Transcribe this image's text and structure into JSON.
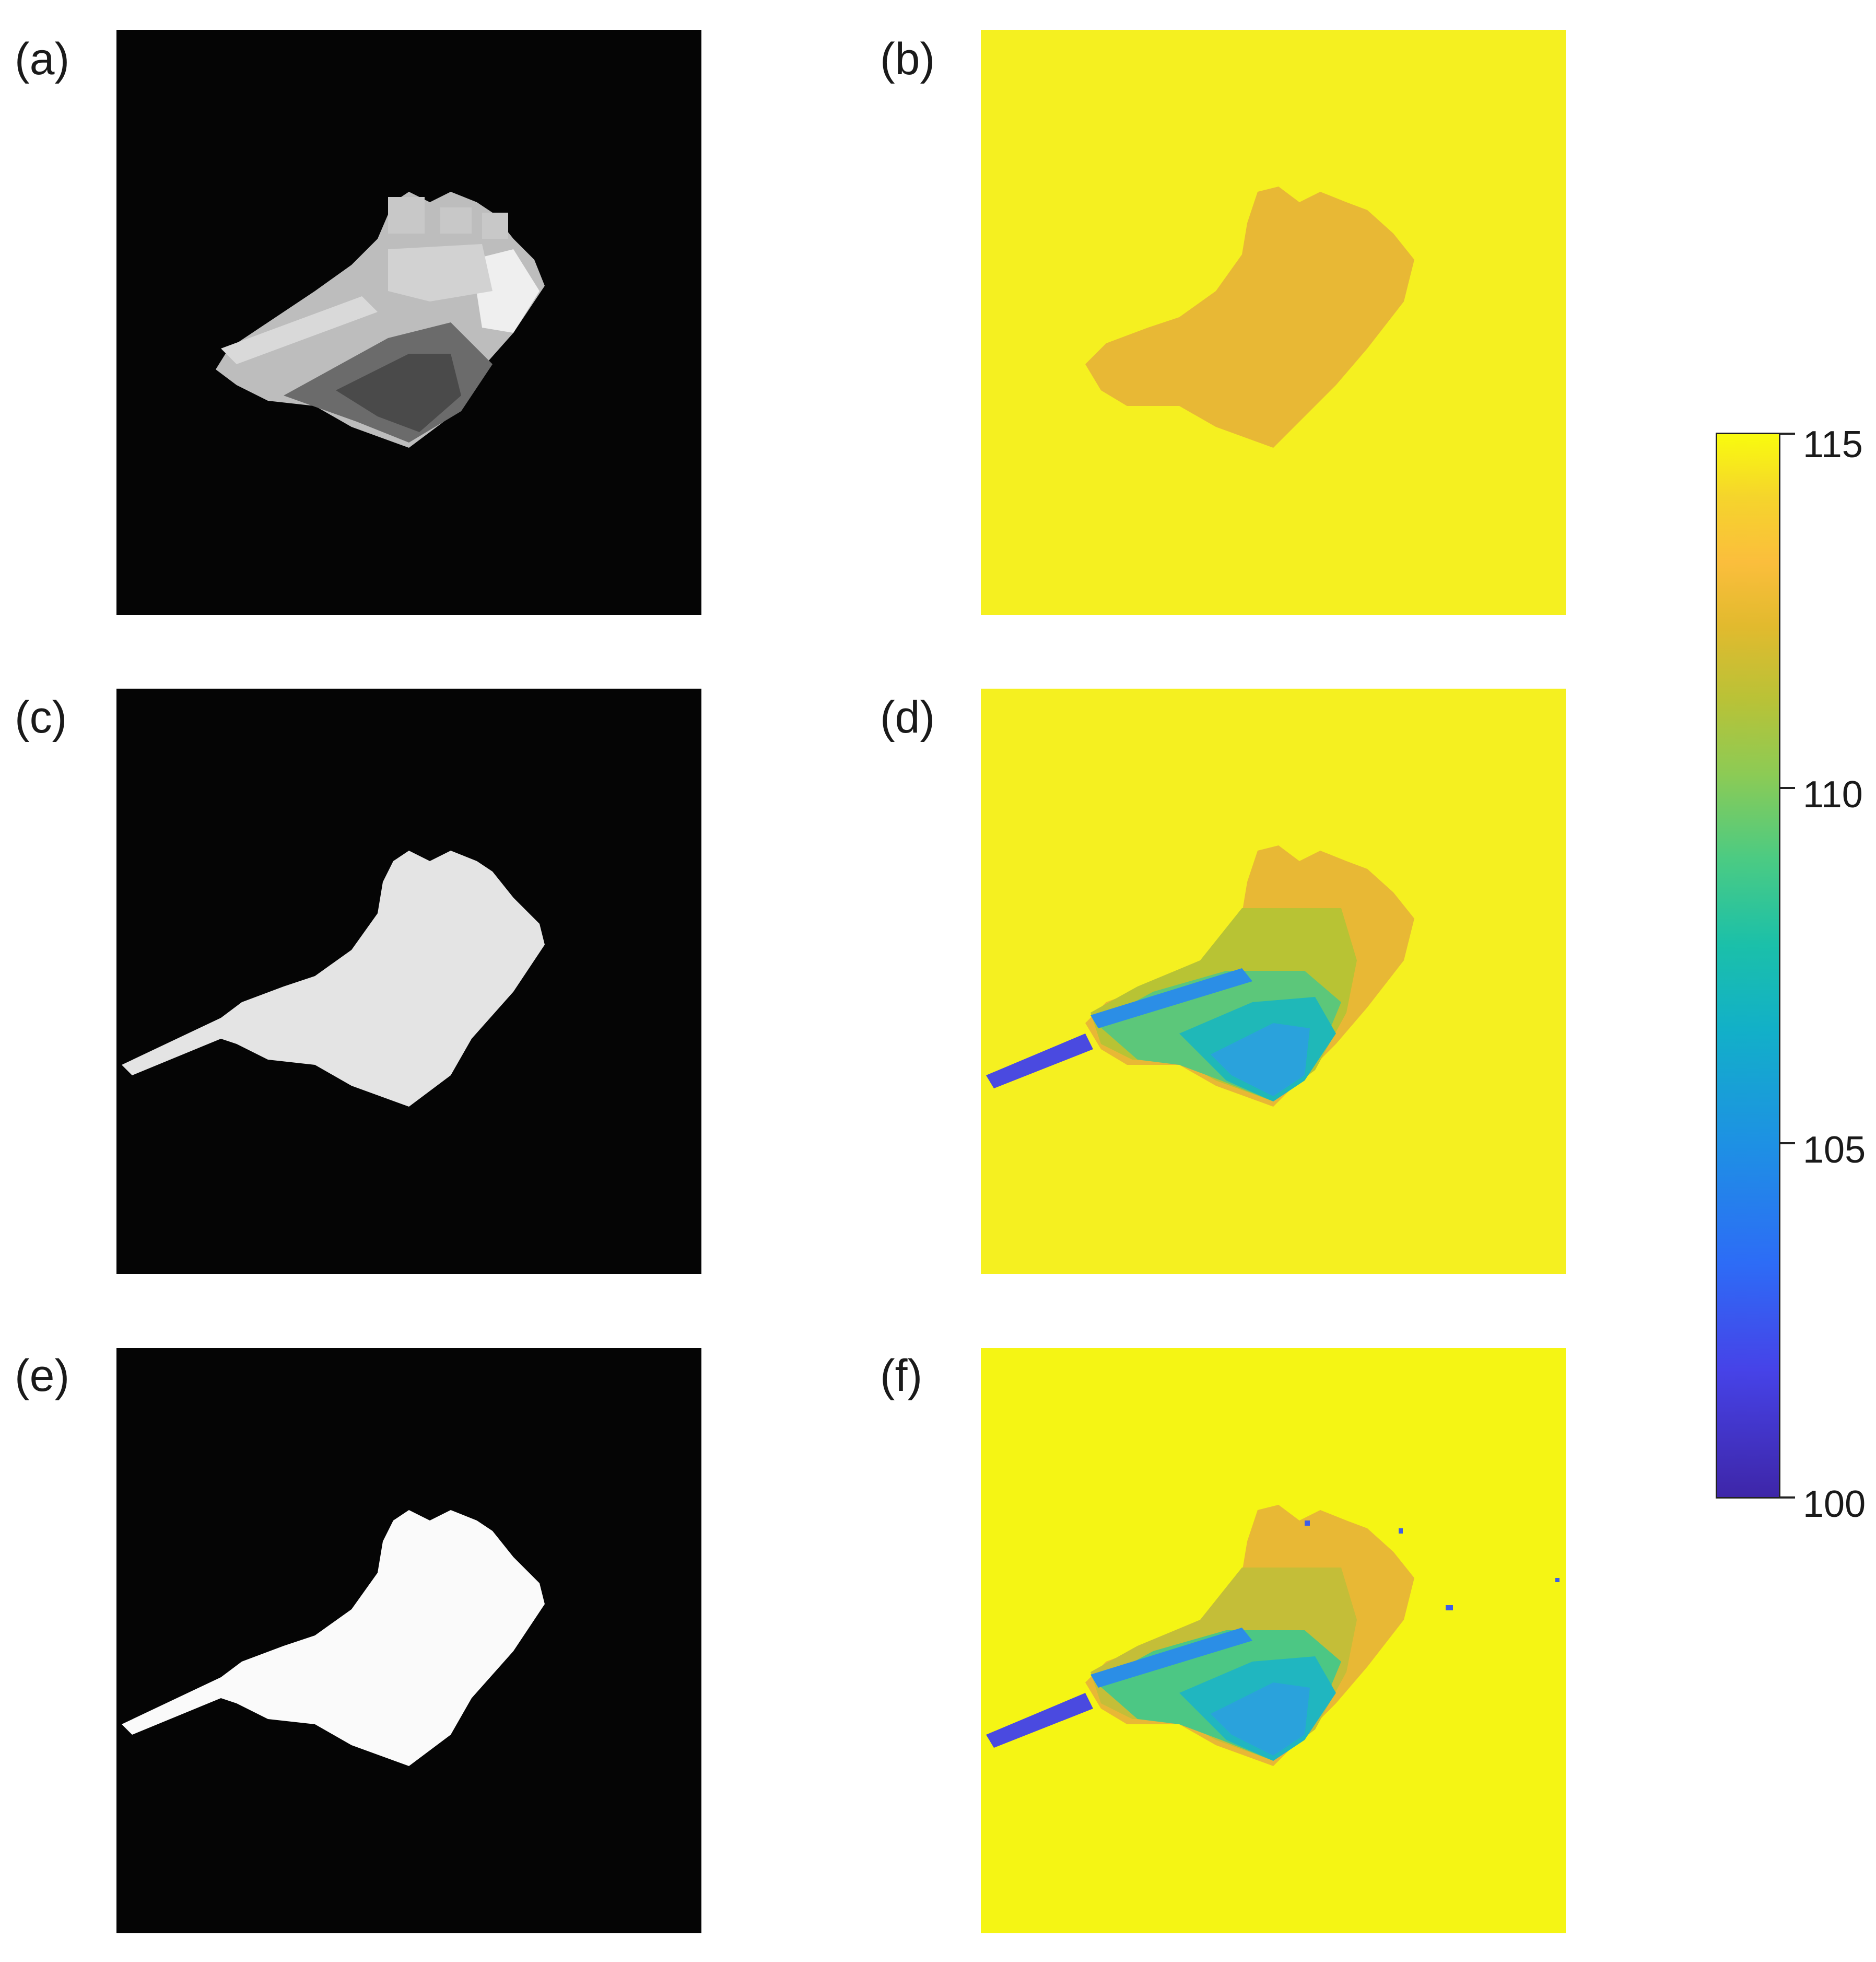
{
  "panels": [
    {
      "label": "(a)",
      "kind": "grayscale-intensity"
    },
    {
      "label": "(b)",
      "kind": "colormap-depth"
    },
    {
      "label": "(c)",
      "kind": "grayscale-intensity"
    },
    {
      "label": "(d)",
      "kind": "colormap-depth"
    },
    {
      "label": "(e)",
      "kind": "grayscale-intensity"
    },
    {
      "label": "(f)",
      "kind": "colormap-depth"
    }
  ],
  "colorbar": {
    "ticks": [
      "115",
      "110",
      "105",
      "100"
    ],
    "range": [
      100,
      115
    ],
    "colormap": "parula"
  },
  "colors": {
    "background_gray": "#050505",
    "background_yellow": "#f5f020",
    "tank_orange": "#e8b835"
  }
}
